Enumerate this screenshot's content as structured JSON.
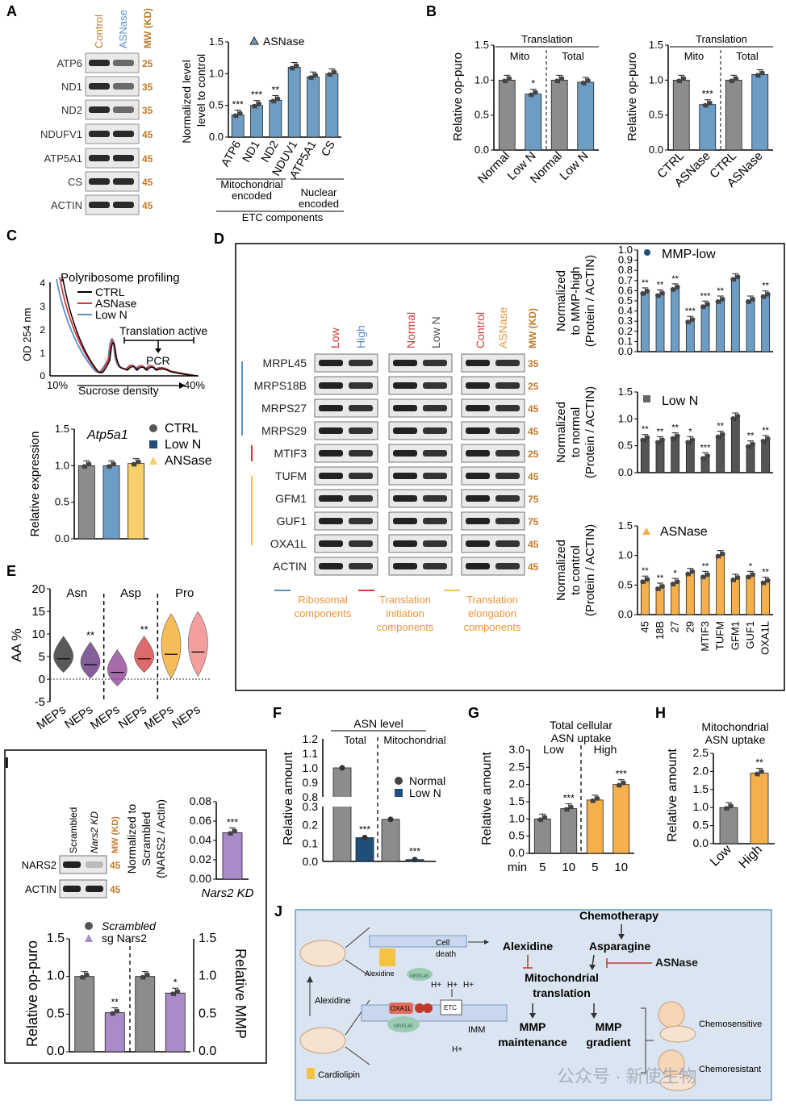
{
  "colors": {
    "gray": "#8c8c8c",
    "blue": "#6d9dc5",
    "orange": "#f5b04b",
    "yellow": "#f7d06a",
    "purple": "#a98bc9",
    "navy": "#1f4e79",
    "red": "#d23a3a",
    "wbBg": "#e9e9e9",
    "mwText": "#c07a2a",
    "ribBlue": "#5b8fc9",
    "initRed": "#d23a3a",
    "elongYellow": "#f2c14e",
    "diagramBg": "#dbe5f1"
  },
  "panelA": {
    "label": "A",
    "headers": [
      "Control",
      "ASNase",
      "MW (KD)"
    ],
    "bands": [
      "ATP6",
      "ND1",
      "ND2",
      "NDUFV1",
      "ATP5A1",
      "CS",
      "ACTIN"
    ],
    "mw": [
      "25",
      "35",
      "35",
      "45",
      "45",
      "45",
      "45"
    ]
  },
  "panelB": {
    "label": "B"
  },
  "panelC": {
    "label": "C",
    "title": "Polyribosome profiling",
    "legend": [
      "CTRL",
      "ASNase",
      "Low N"
    ],
    "ylabel": "OD 254 nm",
    "xlabel": "Sucrose density",
    "xstart": "10%",
    "xend": "40%",
    "active": "Translation active",
    "pcr": "PCR"
  },
  "panelD": {
    "label": "D",
    "groups": [
      "Low",
      "High",
      "Normal",
      "Low N",
      "Control",
      "ASNase",
      "MW (KD)"
    ],
    "bands": [
      "MRPL45",
      "MRPS18B",
      "MRPS27",
      "MRPS29",
      "MTIF3",
      "TUFM",
      "GFM1",
      "GUF1",
      "OXA1L",
      "ACTIN"
    ],
    "mw": [
      "35",
      "25",
      "45",
      "45",
      "25",
      "45",
      "75",
      "75",
      "45",
      "45"
    ],
    "cats": [
      {
        "name": "Ribosomal",
        "sub": "components"
      },
      {
        "name": "Translation",
        "sub": "initiation",
        "sub2": "components"
      },
      {
        "name": "Translation",
        "sub": "elongation",
        "sub2": "components"
      }
    ]
  },
  "panelE": {
    "label": "E"
  },
  "panelF": {
    "label": "F"
  },
  "panelG": {
    "label": "G"
  },
  "panelH": {
    "label": "H"
  },
  "panelI": {
    "label": "I",
    "headers": [
      "Scrambled",
      "Nars2 KD",
      "MW (KD)"
    ],
    "bands": [
      "NARS2",
      "ACTIN"
    ],
    "mw": [
      "45",
      "45"
    ]
  },
  "panelJ": {
    "label": "J",
    "chemo": "Chemotherapy",
    "alex": "Alexidine",
    "asp": "Asparagine",
    "asnase": "ASNase",
    "mito": "Mitochondrial",
    "trans": "translation",
    "mmp1": "MMP",
    "mmp1b": "maintenance",
    "mmp2": "MMP",
    "mmp2b": "gradient",
    "sens": "Chemosensitive",
    "res": "Chemoresistant",
    "cell": "Cell",
    "death": "death",
    "alex2": "Alexidine",
    "alex3": "Alexidine",
    "cardio": "Cardiolipin",
    "oxa": "OXA1L",
    "etc": "ETC",
    "imm": "IMM",
    "mrpl": "MRPL45",
    "mrpl2": "MRPL45",
    "hplus": "H+",
    "wm": "公众号 · 新使生物"
  },
  "chart_data": [
    {
      "panel": "A",
      "type": "bar",
      "categories": [
        "ATP6",
        "ND1",
        "ND2",
        "NDUV1",
        "ATP5A1",
        "CS"
      ],
      "values": [
        0.35,
        0.5,
        0.58,
        1.1,
        0.95,
        1.0
      ],
      "sig": [
        "***",
        "***",
        "**",
        "",
        "",
        ""
      ],
      "ylabel": "Normalized level to control",
      "yticks": [
        "0.0",
        "0.5",
        "1.0",
        "1.5"
      ],
      "ylim": [
        0,
        1.5
      ],
      "legend": "ASNase",
      "groups": [
        "Mitochondrial",
        "encoded",
        "Nuclear",
        "encoded",
        "ETC components"
      ]
    },
    {
      "panel": "B1",
      "type": "bar",
      "categories": [
        "Normal",
        "Low N",
        "Normal",
        "Low N"
      ],
      "values": [
        1.0,
        0.8,
        1.0,
        0.97
      ],
      "sig": [
        "",
        "*",
        "",
        ""
      ],
      "ylabel": "Relative op-puro",
      "yticks": [
        "0.0",
        "0.5",
        "1.0",
        "1.5"
      ],
      "ylim": [
        0,
        1.5
      ],
      "header": "Translation",
      "sub": [
        "Mito",
        "Total"
      ]
    },
    {
      "panel": "B2",
      "type": "bar",
      "categories": [
        "CTRL",
        "ASNase",
        "CTRL",
        "ASNase"
      ],
      "values": [
        1.0,
        0.65,
        1.0,
        1.08
      ],
      "sig": [
        "",
        "***",
        "",
        ""
      ],
      "ylabel": "Relative op-puro",
      "yticks": [
        "0.0",
        "0.5",
        "1.0",
        "1.5"
      ],
      "ylim": [
        0,
        1.5
      ],
      "header": "Translation",
      "sub": [
        "Mito",
        "Total"
      ]
    },
    {
      "panel": "C2",
      "type": "bar",
      "categories": [
        "CTRL",
        "Low N",
        "ANSase"
      ],
      "values": [
        1.0,
        1.0,
        1.03
      ],
      "ylabel": "Relative expression",
      "title": "Atp5a1",
      "yticks": [
        "0.0",
        "0.5",
        "1.0",
        "1.5"
      ],
      "ylim": [
        0,
        1.5
      ]
    },
    {
      "panel": "D1",
      "type": "bar",
      "categories": [
        "45",
        "18B",
        "27",
        "29",
        "MTIF3",
        "TUFM",
        "GFM1",
        "GUF1",
        "OXA1L"
      ],
      "values": [
        0.58,
        0.56,
        0.62,
        0.3,
        0.45,
        0.5,
        0.72,
        0.5,
        0.55
      ],
      "sig": [
        "**",
        "**",
        "**",
        "***",
        "***",
        "**",
        "",
        "",
        "**"
      ],
      "ylabel": [
        "Normalized",
        "to MMP-high",
        "(Protein / ACTIN)"
      ],
      "legend": "MMP-low",
      "yticks": [
        "0.0",
        "0.1",
        "0.2",
        "0.3",
        "0.4",
        "0.5",
        "0.6",
        "0.7",
        "0.8",
        "0.9",
        "1.0"
      ],
      "ylim": [
        0,
        1.0
      ]
    },
    {
      "panel": "D2",
      "type": "bar",
      "categories": [
        "45",
        "18B",
        "27",
        "29",
        "MTIF3",
        "TUFM",
        "GFM1",
        "GUF1",
        "OXA1L"
      ],
      "values": [
        0.62,
        0.58,
        0.65,
        0.58,
        0.28,
        0.68,
        1.02,
        0.5,
        0.6
      ],
      "sig": [
        "**",
        "**",
        "**",
        "*",
        "***",
        "**",
        "",
        "**",
        "**"
      ],
      "ylabel": [
        "Normalized",
        "to normal",
        "(Protein / ACTIN)"
      ],
      "legend": "Low N",
      "yticks": [
        "0.0",
        "0.5",
        "1.0",
        "1.5"
      ],
      "ylim": [
        0,
        1.5
      ]
    },
    {
      "panel": "D3",
      "type": "bar",
      "categories": [
        "45",
        "18B",
        "27",
        "29",
        "MTIF3",
        "TUFM",
        "GFM1",
        "GUF1",
        "OXA1L"
      ],
      "values": [
        0.57,
        0.45,
        0.53,
        0.7,
        0.65,
        1.0,
        0.6,
        0.65,
        0.55
      ],
      "sig": [
        "**",
        "**",
        "*",
        "",
        "**",
        "",
        "",
        "*",
        "**"
      ],
      "ylabel": [
        "Normalized",
        "to control",
        "(Protein / ACTIN)"
      ],
      "legend": "ASNase",
      "yticks": [
        "0.0",
        "0.5",
        "1.0",
        "1.5"
      ],
      "ylim": [
        0,
        1.5
      ]
    },
    {
      "panel": "E",
      "type": "violin",
      "categories": [
        "MEPs",
        "NEPs",
        "MEPs",
        "NEPs",
        "MEPs",
        "NEPs"
      ],
      "groups": [
        "Asn",
        "Asp",
        "Pro"
      ],
      "medians": [
        4.5,
        3.2,
        1.5,
        4.5,
        5.5,
        6.0
      ],
      "sig": [
        "",
        "**",
        "",
        "**",
        "",
        ""
      ],
      "ylabel": "AA %",
      "yticks": [
        "-5",
        "0",
        "5",
        "10",
        "15",
        "20"
      ],
      "ylim": [
        -5,
        20
      ]
    },
    {
      "panel": "F",
      "type": "bar",
      "categories": [
        "Total Normal",
        "Total Low N",
        "Mito Normal",
        "Mito Low N"
      ],
      "values": [
        1.0,
        0.13,
        0.23,
        0.01
      ],
      "sig": [
        "",
        "***",
        "",
        "***"
      ],
      "ylabel": "Relative amount",
      "header": "ASN level",
      "sub": [
        "Total",
        "Mitochondrial"
      ],
      "legend": [
        "Normal",
        "Low N"
      ],
      "yticks": [
        "0.0",
        "0.1",
        "0.2",
        "0.3",
        "0.8",
        "0.9",
        "1.0",
        "1.1",
        "1.2"
      ]
    },
    {
      "panel": "G",
      "type": "bar",
      "title": [
        "Total cellular",
        "ASN uptake"
      ],
      "groups": [
        "Low",
        "High"
      ],
      "categories": [
        "5",
        "10",
        "5",
        "10"
      ],
      "values": [
        1.0,
        1.3,
        1.55,
        2.0
      ],
      "sig": [
        "",
        "***",
        "",
        "***"
      ],
      "xprefix": "min",
      "ylabel": "Relative amount",
      "yticks": [
        "0.0",
        "0.5",
        "1.0",
        "1.5",
        "2.0",
        "2.5",
        "3.0"
      ],
      "ylim": [
        0,
        3.0
      ]
    },
    {
      "panel": "H",
      "type": "bar",
      "title": [
        "Mitochondrial",
        "ASN uptake"
      ],
      "categories": [
        "Low",
        "High"
      ],
      "values": [
        1.0,
        1.95
      ],
      "sig": [
        "",
        "**"
      ],
      "ylabel": "Relative amount",
      "yticks": [
        "0.0",
        "0.5",
        "1.0",
        "1.5",
        "2.0",
        "2.5"
      ],
      "ylim": [
        0,
        2.5
      ]
    },
    {
      "panel": "I1",
      "type": "bar",
      "categories": [
        "Nars2 KD"
      ],
      "values": [
        0.048
      ],
      "sig": [
        "***"
      ],
      "ylabel": [
        "Normalized to",
        "Scrambled",
        "(NARS2 / Actin)"
      ],
      "yticks": [
        "0.00",
        "0.02",
        "0.04",
        "0.06",
        "0.08"
      ],
      "ylim": [
        0,
        0.08
      ]
    },
    {
      "panel": "I2",
      "type": "bar",
      "categories": [
        "Scrambled",
        "sg Nars2",
        "Scrambled",
        "sg Nars2"
      ],
      "values": [
        1.0,
        0.52,
        1.0,
        0.78
      ],
      "sig": [
        "",
        "**",
        "",
        "*"
      ],
      "ylabel": "Relative op-puro",
      "ylabel2": "Relative MMP",
      "legend": [
        "Scrambled",
        "sg Nars2"
      ],
      "yticks": [
        "0.0",
        "0.5",
        "1.0",
        "1.5"
      ],
      "ylim": [
        0,
        1.5
      ]
    }
  ]
}
